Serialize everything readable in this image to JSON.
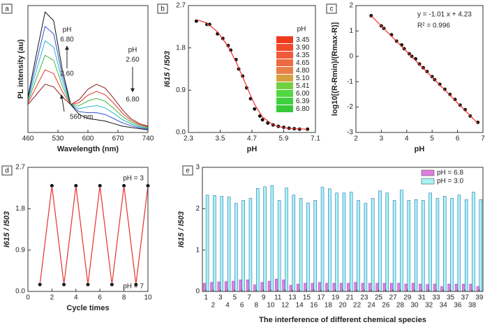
{
  "chart_data": [
    {
      "type": "line",
      "panel": "a",
      "x_label": "Wavelength (nm)",
      "y_label": "PL intensity (au)",
      "xlim": [
        460,
        740
      ],
      "xticks": [
        460,
        530,
        600,
        670,
        740
      ],
      "ylim": [
        0,
        100
      ],
      "x": [
        460,
        480,
        500,
        520,
        540,
        560,
        580,
        600,
        620,
        640,
        660,
        680,
        700,
        720,
        740
      ],
      "series": [
        {
          "color": "#8b1a1a",
          "style": "line",
          "values": [
            22,
            30,
            38,
            36,
            28,
            22,
            26,
            34,
            38,
            35,
            27,
            18,
            11,
            7,
            5
          ]
        },
        {
          "color": "#e8302a",
          "style": "line",
          "values": [
            23.2,
            36.4,
            49.4,
            46.4,
            32.4,
            22,
            23.6,
            29.4,
            32.4,
            29.8,
            23,
            15.4,
            9.6,
            6.2,
            4.4
          ]
        },
        {
          "color": "#3cb33c",
          "style": "line",
          "values": [
            24.4,
            42.8,
            60.8,
            56.8,
            36.8,
            22,
            21.2,
            24.8,
            26.8,
            24.6,
            19,
            12.8,
            8.2,
            5.4,
            3.8
          ]
        },
        {
          "color": "#2ab8c8",
          "style": "line",
          "values": [
            25.6,
            49.2,
            72.2,
            67.2,
            41.2,
            22,
            18.8,
            20.2,
            21.2,
            19.4,
            15,
            10.2,
            6.8,
            4.6,
            3.2
          ]
        },
        {
          "color": "#3050d0",
          "style": "line",
          "values": [
            26.8,
            55.6,
            83.6,
            77.6,
            45.6,
            22,
            16.4,
            15.6,
            15.6,
            14.2,
            11,
            7.6,
            5.4,
            3.8,
            2.6
          ]
        },
        {
          "color": "#111111",
          "style": "line",
          "values": [
            28,
            62,
            95,
            88,
            50,
            22,
            14,
            11,
            10,
            9,
            7,
            5,
            4,
            3,
            2
          ]
        }
      ],
      "annotations": [
        "pH",
        "6.80",
        "2.60",
        "pH",
        "2.60",
        "6.80",
        "560 nm"
      ]
    },
    {
      "type": "scatter",
      "panel": "b",
      "x_label": "pH",
      "y_label": "I615 / I503",
      "xlim": [
        2.3,
        7.1
      ],
      "xticks": [
        2.3,
        3.5,
        4.7,
        5.9,
        7.1
      ],
      "ylim": [
        0,
        2.7
      ],
      "yticks": [
        {
          "value": 0,
          "label": "0.0"
        },
        0.9,
        1.8,
        2.7
      ],
      "series": [
        {
          "color": "#111111",
          "style": "markers",
          "x": [
            2.6,
            3.0,
            3.1,
            3.4,
            3.6,
            3.8,
            3.9,
            4.1,
            4.2,
            4.35,
            4.5,
            4.65,
            4.8,
            5.0,
            5.1,
            5.3,
            5.5,
            5.7,
            5.9,
            6.1,
            6.3,
            6.5,
            6.8
          ],
          "values": [
            2.37,
            2.3,
            2.3,
            2.1,
            2.0,
            1.85,
            1.75,
            1.55,
            1.35,
            1.2,
            0.95,
            0.72,
            0.5,
            0.35,
            0.27,
            0.2,
            0.16,
            0.13,
            0.11,
            0.09,
            0.08,
            0.07,
            0.07
          ]
        },
        {
          "color": "#e8302a",
          "style": "line",
          "x": [
            2.6,
            3.0,
            3.4,
            3.8,
            4.1,
            4.35,
            4.6,
            4.8,
            5.1,
            5.5,
            5.9,
            6.3,
            6.8
          ],
          "values": [
            2.4,
            2.33,
            2.14,
            1.83,
            1.5,
            1.18,
            0.85,
            0.6,
            0.33,
            0.16,
            0.1,
            0.08,
            0.07
          ]
        }
      ],
      "inset_title": "pH",
      "inset_labels": [
        "3.45",
        "3.90",
        "4.35",
        "4.65",
        "4.80",
        "5.10",
        "5.41",
        "6.00",
        "6.39",
        "6.80"
      ],
      "inset_colors": [
        "#f03a20",
        "#f04a2a",
        "#f05a38",
        "#ee6a40",
        "#e8804a",
        "#d8a040",
        "#70d040",
        "#50d840",
        "#40d040",
        "#38c838"
      ]
    },
    {
      "type": "scatter",
      "panel": "c",
      "x_label": "pH",
      "y_label": "log10[(R-Rmin)/(Rmax-R)]",
      "xlim": [
        2,
        7
      ],
      "xticks": [
        2,
        3,
        4,
        5,
        6,
        7
      ],
      "ylim": [
        -3,
        2
      ],
      "yticks": [
        -3,
        -2,
        -1,
        0,
        1,
        2
      ],
      "series": [
        {
          "color": "#111111",
          "style": "markers",
          "x": [
            2.6,
            3.0,
            3.1,
            3.4,
            3.6,
            3.8,
            3.9,
            4.1,
            4.2,
            4.35,
            4.5,
            4.65,
            4.8,
            5.0,
            5.1,
            5.3,
            5.5,
            5.7,
            5.9,
            6.1,
            6.3,
            6.5,
            6.8
          ],
          "values": [
            1.6,
            1.2,
            1.1,
            0.85,
            0.6,
            0.45,
            0.3,
            0.1,
            0.0,
            -0.1,
            -0.3,
            -0.45,
            -0.6,
            -0.8,
            -0.92,
            -1.1,
            -1.3,
            -1.5,
            -1.7,
            -1.92,
            -2.1,
            -2.35,
            -2.6
          ]
        },
        {
          "color": "#e8302a",
          "style": "line",
          "x": [
            2.6,
            6.8
          ],
          "values": [
            1.6,
            -2.64
          ]
        }
      ],
      "annotations": [
        "y = -1.01 x + 4.23",
        "R² = 0.996"
      ]
    },
    {
      "type": "line",
      "panel": "d",
      "x_label": "Cycle times",
      "y_label": "I615 / I503",
      "xlim": [
        0,
        10
      ],
      "xticks": [
        0,
        2,
        4,
        6,
        8,
        10
      ],
      "ylim": [
        0,
        2.7
      ],
      "yticks": [
        {
          "value": 0,
          "label": "0.0"
        },
        0.9,
        1.8,
        2.7
      ],
      "x": [
        1,
        2,
        3,
        4,
        5,
        6,
        7,
        8,
        9,
        10
      ],
      "series": [
        {
          "color": "#e8302a",
          "marker_color": "#111111",
          "style": "line+markers",
          "values": [
            0.15,
            2.3,
            0.15,
            2.3,
            0.15,
            2.3,
            0.15,
            2.3,
            0.15,
            2.3
          ]
        }
      ],
      "annotations": [
        "pH = 3",
        "pH = 7"
      ]
    },
    {
      "type": "bar",
      "panel": "e",
      "x_label": "The interference of different chemical species",
      "y_label": "I615 / I503",
      "ylim": [
        0,
        3
      ],
      "yticks": [
        0,
        1,
        2,
        3
      ],
      "categories": [
        "1",
        "2",
        "3",
        "4",
        "5",
        "6",
        "7",
        "8",
        "9",
        "10",
        "11",
        "12",
        "13",
        "14",
        "15",
        "16",
        "17",
        "18",
        "19",
        "20",
        "21",
        "22",
        "23",
        "24",
        "25",
        "26",
        "27",
        "28",
        "29",
        "30",
        "31",
        "32",
        "33",
        "34",
        "35",
        "36",
        "37",
        "38",
        "39"
      ],
      "series": [
        {
          "name": "pH = 6.8",
          "color": "#e07ee0",
          "values": [
            0.2,
            0.22,
            0.23,
            0.24,
            0.25,
            0.28,
            0.28,
            0.16,
            0.22,
            0.25,
            0.3,
            0.28,
            0.15,
            0.18,
            0.2,
            0.2,
            0.22,
            0.2,
            0.2,
            0.2,
            0.2,
            0.22,
            0.2,
            0.2,
            0.2,
            0.2,
            0.2,
            0.2,
            0.18,
            0.2,
            0.18,
            0.17,
            0.18,
            0.12,
            0.18,
            0.18,
            0.18,
            0.18,
            0.12
          ]
        },
        {
          "name": "pH = 3.0",
          "color": "#a8f4f4",
          "values": [
            2.33,
            2.32,
            2.3,
            2.28,
            2.13,
            2.2,
            2.25,
            2.49,
            2.53,
            2.56,
            2.2,
            2.5,
            2.33,
            2.25,
            2.14,
            2.2,
            2.52,
            2.48,
            2.38,
            2.38,
            2.4,
            2.2,
            2.13,
            2.25,
            2.43,
            2.38,
            2.2,
            2.45,
            2.2,
            2.22,
            2.2,
            2.38,
            2.25,
            2.3,
            2.25,
            2.33,
            2.22,
            2.4,
            2.22
          ]
        }
      ],
      "legend": "top-right"
    }
  ]
}
